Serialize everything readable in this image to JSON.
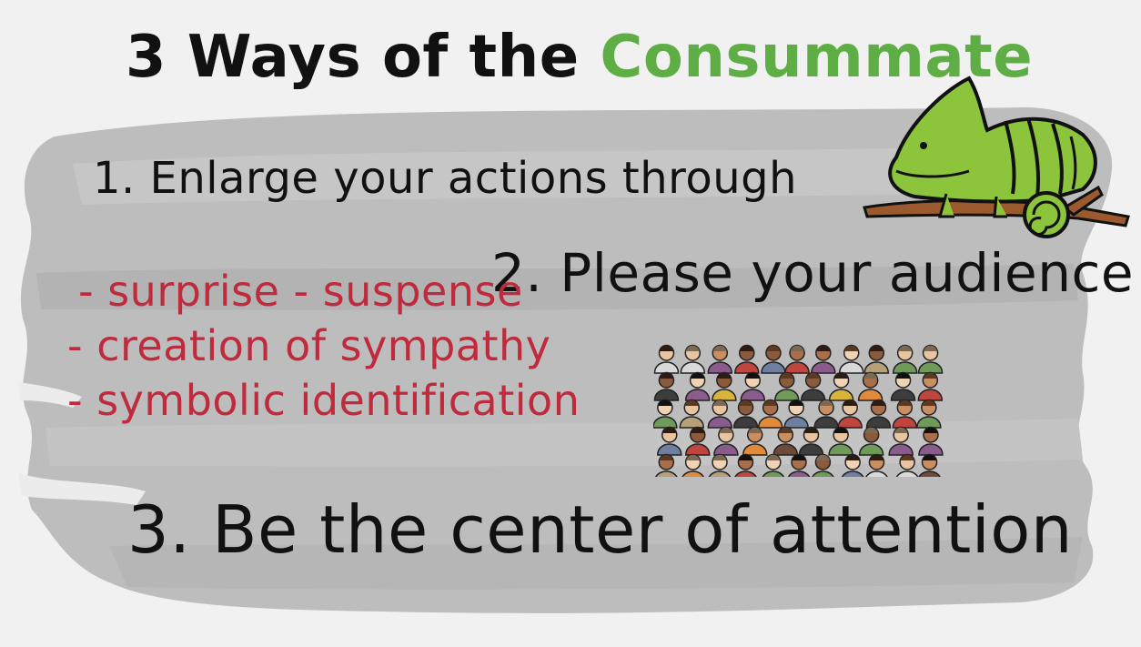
{
  "heading": {
    "prefix": "3 Ways of the",
    "accent": "Consummate"
  },
  "points": {
    "one": "1. Enlarge your actions through",
    "two": "2. Please your audience",
    "three": "3. Be the center of attention"
  },
  "sub_items": [
    "- surprise - suspense",
    "- creation of sympathy",
    "- symbolic identification"
  ],
  "colors": {
    "background": "#f1f1f1",
    "brush": "#b9b9b9",
    "accent_green": "#5fae45",
    "red_text": "#bf2a3c",
    "ink": "#111111"
  },
  "icons": {
    "mascot": "chameleon-icon",
    "crowd": "crowd-icon"
  }
}
